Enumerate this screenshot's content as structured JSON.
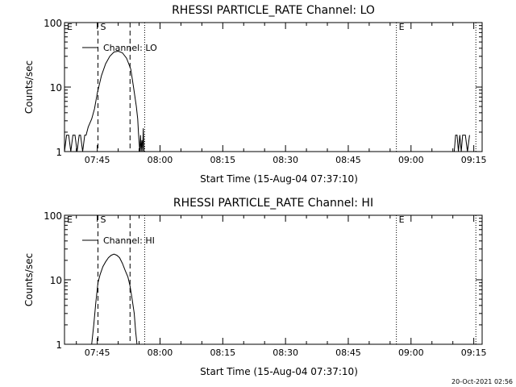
{
  "footer": {
    "date": "20-Oct-2021 02:56"
  },
  "chart_data": [
    {
      "type": "line",
      "title": "RHESSI PARTICLE_RATE Channel: LO",
      "xlabel": "Start Time (15-Aug-04 07:37:10)",
      "ylabel": "Counts/sec",
      "yscale": "log",
      "ylim": [
        1,
        100
      ],
      "xlim": [
        "07:37:10",
        "09:17:00"
      ],
      "xticks": [
        "07:45",
        "08:00",
        "08:15",
        "08:30",
        "08:45",
        "09:00",
        "09:15"
      ],
      "yticks": [
        "1",
        "10",
        "100"
      ],
      "legend": {
        "position": "top-left",
        "entries": [
          "Channel: LO"
        ]
      },
      "series": [
        {
          "name": "Channel: LO",
          "x": [
            "07:37:10",
            "07:37:40",
            "07:38:10",
            "07:38:40",
            "07:39:10",
            "07:39:40",
            "07:40:10",
            "07:40:40",
            "07:41:00",
            "07:41:30",
            "07:42:00",
            "07:42:20",
            "07:42:50",
            "07:43:40",
            "07:44:20",
            "07:45:00",
            "07:46:00",
            "07:47:00",
            "07:48:00",
            "07:49:00",
            "07:50:00",
            "07:51:00",
            "07:52:00",
            "07:53:00",
            "07:53:40",
            "07:54:20",
            "07:54:40",
            "07:54:50",
            "07:55:00",
            "07:55:10",
            "07:55:20",
            "07:55:30",
            "07:55:40",
            "07:55:50",
            "07:56:00",
            "07:56:10"
          ],
          "values": [
            1,
            1.8,
            1.8,
            1,
            1.8,
            1.8,
            1,
            1.8,
            1.8,
            1,
            1.8,
            1.8,
            2.4,
            3.2,
            4.6,
            8,
            15,
            23,
            30,
            35,
            36,
            34,
            28,
            19,
            10,
            5,
            3.2,
            2,
            1.4,
            1,
            1.8,
            1,
            1.5,
            1,
            2.3,
            1
          ]
        },
        {
          "name": "",
          "x": [
            "09:10:20",
            "09:10:40",
            "09:11:00",
            "09:11:20",
            "09:11:40",
            "09:12:00",
            "09:12:20",
            "09:13:00",
            "09:13:30",
            "09:14:00"
          ],
          "values": [
            1,
            1.8,
            1.8,
            1,
            1.8,
            1,
            1.8,
            1.8,
            1,
            1.8
          ]
        }
      ],
      "markers": [
        {
          "label": "E",
          "time": "07:37:10",
          "style": "dotted"
        },
        {
          "label": "S",
          "time": "07:45:10",
          "style": "dashed"
        },
        {
          "label": "",
          "time": "07:52:50",
          "style": "dashed"
        },
        {
          "label": "",
          "time": "07:56:20",
          "style": "dotted"
        },
        {
          "label": "E",
          "time": "08:56:30",
          "style": "dotted"
        },
        {
          "label": "",
          "time": "09:15:30",
          "style": "dotted"
        }
      ]
    },
    {
      "type": "line",
      "title": "RHESSI PARTICLE_RATE Channel: HI",
      "xlabel": "Start Time (15-Aug-04 07:37:10)",
      "ylabel": "Counts/sec",
      "yscale": "log",
      "ylim": [
        1,
        100
      ],
      "xlim": [
        "07:37:10",
        "09:17:00"
      ],
      "xticks": [
        "07:45",
        "08:00",
        "08:15",
        "08:30",
        "08:45",
        "09:00",
        "09:15"
      ],
      "yticks": [
        "1",
        "10",
        "100"
      ],
      "legend": {
        "position": "top-left",
        "entries": [
          "Channel: HI"
        ]
      },
      "series": [
        {
          "name": "Channel: HI",
          "x": [
            "07:43:40",
            "07:44:10",
            "07:44:40",
            "07:45:10",
            "07:45:40",
            "07:46:20",
            "07:47:00",
            "07:47:40",
            "07:48:20",
            "07:49:00",
            "07:49:40",
            "07:50:20",
            "07:51:00",
            "07:51:40",
            "07:52:20",
            "07:52:50",
            "07:53:20",
            "07:53:50",
            "07:54:10",
            "07:54:30"
          ],
          "values": [
            1,
            2,
            4.5,
            9,
            12,
            16,
            19,
            22,
            24,
            25,
            24,
            22,
            18,
            14,
            11,
            8,
            5,
            3,
            1.6,
            1
          ]
        }
      ],
      "markers": [
        {
          "label": "E",
          "time": "07:37:10",
          "style": "dotted"
        },
        {
          "label": "S",
          "time": "07:45:10",
          "style": "dashed"
        },
        {
          "label": "",
          "time": "07:52:50",
          "style": "dashed"
        },
        {
          "label": "",
          "time": "07:56:20",
          "style": "dotted"
        },
        {
          "label": "E",
          "time": "08:56:30",
          "style": "dotted"
        },
        {
          "label": "",
          "time": "09:15:30",
          "style": "dotted"
        }
      ]
    }
  ]
}
